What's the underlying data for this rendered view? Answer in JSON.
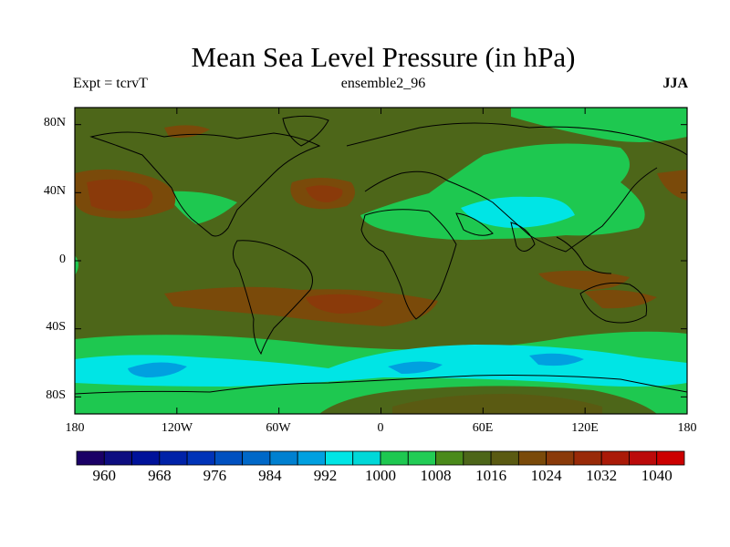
{
  "title": "Mean Sea Level Pressure (in hPa)",
  "subtitle_left": "Expt = tcrvT",
  "subtitle_center": "ensemble2_96",
  "subtitle_right": "JJA",
  "map": {
    "projection": "cylindrical-equidistant",
    "lon_range": [
      -180,
      180
    ],
    "lat_range": [
      -90,
      90
    ],
    "lat_ticks": [
      {
        "label": "80N",
        "value": 80
      },
      {
        "label": "40N",
        "value": 40
      },
      {
        "label": "0",
        "value": 0
      },
      {
        "label": "40S",
        "value": -40
      },
      {
        "label": "80S",
        "value": -80
      }
    ],
    "lon_ticks": [
      {
        "label": "180",
        "value": -180
      },
      {
        "label": "120W",
        "value": -120
      },
      {
        "label": "60W",
        "value": -60
      },
      {
        "label": "0",
        "value": 0
      },
      {
        "label": "60E",
        "value": 60
      },
      {
        "label": "120E",
        "value": 120
      },
      {
        "label": "180",
        "value": 180
      }
    ],
    "background_color": "#4d6619"
  },
  "colorbar": {
    "levels": [
      960,
      964,
      968,
      972,
      976,
      980,
      984,
      988,
      992,
      996,
      1000,
      1004,
      1008,
      1012,
      1016,
      1020,
      1024,
      1028,
      1032,
      1036,
      1040
    ],
    "labels": [
      "960",
      "968",
      "976",
      "984",
      "992",
      "1000",
      "1008",
      "1016",
      "1024",
      "1032",
      "1040"
    ],
    "colors": [
      "#1a0066",
      "#0d0d80",
      "#00129a",
      "#0022a8",
      "#0033b8",
      "#0050c0",
      "#0068c8",
      "#0080d0",
      "#00a0e0",
      "#00e5e5",
      "#00d8d8",
      "#1ec850",
      "#22cc55",
      "#4a8a1a",
      "#4d6619",
      "#5a5a12",
      "#7a4a0a",
      "#8a3a0a",
      "#992a08",
      "#aa1a08",
      "#bb0a0a",
      "#cc0000"
    ]
  }
}
